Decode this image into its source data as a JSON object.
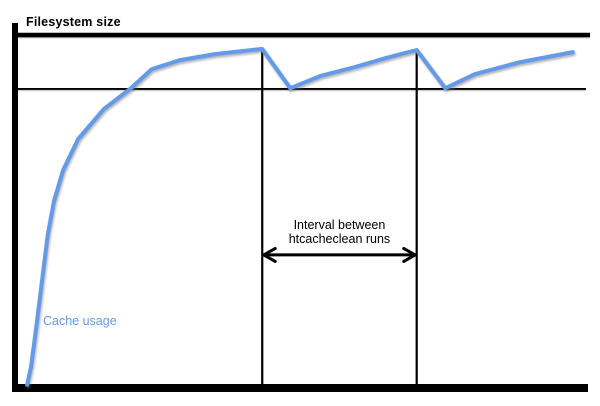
{
  "labels": {
    "filesystem_size": "Filesystem size",
    "cache_usage": "Cache usage",
    "interval_line1": "Interval between",
    "interval_line2": "htcacheclean runs"
  },
  "colors": {
    "curve": "#639ae9",
    "lines": "#000000",
    "background": "#ffffff"
  },
  "chart_data": {
    "type": "line",
    "title": "Filesystem size",
    "xlabel": "",
    "ylabel": "",
    "x_units": "time (no scale shown)",
    "y_units": "disk usage, percent of filesystem size",
    "xlim": [
      0,
      100
    ],
    "ylim": [
      0,
      100
    ],
    "grid": false,
    "legend_position": "none",
    "series": [
      {
        "name": "Cache usage",
        "t": [
          1.6,
          2.3,
          3.3,
          4.2,
          5.2,
          6.3,
          7.9,
          10.5,
          15.0,
          19.8,
          23.4,
          28.3,
          34.4,
          42.7,
          47.6,
          52.8,
          58.9,
          65.0,
          69.7,
          74.7,
          79.9,
          87.8,
          97.0
        ],
        "pct": [
          -0.5,
          4.9,
          17.5,
          29.3,
          42.5,
          52.3,
          61.2,
          70.1,
          78.7,
          84.8,
          90.2,
          92.8,
          94.5,
          96.0,
          84.7,
          88.2,
          90.8,
          93.7,
          95.7,
          84.7,
          88.8,
          92.2,
          95.1
        ]
      }
    ],
    "filesystem_size_level_pct": 100,
    "threshold_level_pct": 84.5,
    "htcacheclean_run_times_t": [
      42.7,
      69.7
    ],
    "run_line_top_pct": 96.0,
    "annotations": [
      {
        "text": "Interval between htcacheclean runs",
        "arrow": "double-headed",
        "between_t": [
          42.7,
          69.7
        ],
        "arrow_level_pct": 36.8
      }
    ]
  }
}
